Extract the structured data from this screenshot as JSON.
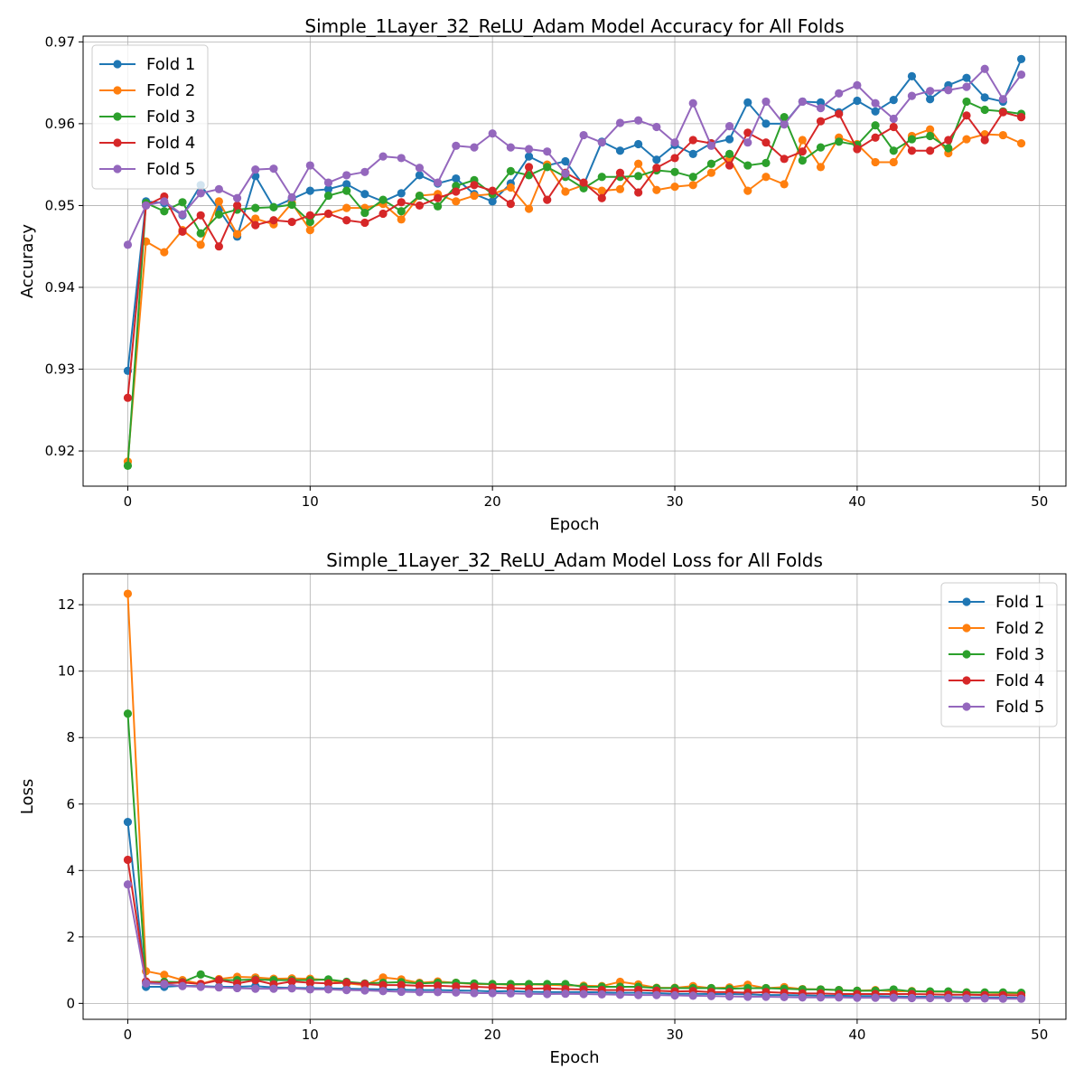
{
  "chart_data": [
    {
      "type": "line",
      "title": "Simple_1Layer_32_ReLU_Adam Model Accuracy for All Folds",
      "xlabel": "Epoch",
      "ylabel": "Accuracy",
      "xlim": [
        -2.45,
        51.45
      ],
      "ylim": [
        0.9157,
        0.9707
      ],
      "xticks": [
        0,
        10,
        20,
        30,
        40,
        50
      ],
      "yticks": [
        0.92,
        0.93,
        0.94,
        0.95,
        0.96,
        0.97
      ],
      "xtick_labels": [
        "0",
        "10",
        "20",
        "30",
        "40",
        "50"
      ],
      "ytick_labels": [
        "0.92",
        "0.93",
        "0.94",
        "0.95",
        "0.96",
        "0.97"
      ],
      "grid": true,
      "legend_position": "upper left",
      "x": [
        0,
        1,
        2,
        3,
        4,
        5,
        6,
        7,
        8,
        9,
        10,
        11,
        12,
        13,
        14,
        15,
        16,
        17,
        18,
        19,
        20,
        21,
        22,
        23,
        24,
        25,
        26,
        27,
        28,
        29,
        30,
        31,
        32,
        33,
        34,
        35,
        36,
        37,
        38,
        39,
        40,
        41,
        42,
        43,
        44,
        45,
        46,
        47,
        48,
        49
      ],
      "series": [
        {
          "name": "Fold 1",
          "color": "#1f77b4",
          "values": [
            0.9298,
            0.9505,
            0.9503,
            0.9488,
            0.9525,
            0.9495,
            0.9462,
            0.9536,
            0.9498,
            0.9508,
            0.9518,
            0.952,
            0.9526,
            0.9514,
            0.9505,
            0.9515,
            0.9537,
            0.9527,
            0.9533,
            0.9514,
            0.9505,
            0.9527,
            0.956,
            0.9549,
            0.9554,
            0.9525,
            0.9578,
            0.9567,
            0.9575,
            0.9556,
            0.9574,
            0.9563,
            0.9576,
            0.9581,
            0.9626,
            0.96,
            0.96,
            0.9627,
            0.9626,
            0.9614,
            0.9628,
            0.9615,
            0.9629,
            0.9658,
            0.963,
            0.9647,
            0.9656,
            0.9632,
            0.9627,
            0.9679
          ]
        },
        {
          "name": "Fold 2",
          "color": "#ff7f0e",
          "values": [
            0.9187,
            0.9456,
            0.9443,
            0.947,
            0.9452,
            0.9505,
            0.9465,
            0.9484,
            0.9477,
            0.9503,
            0.947,
            0.949,
            0.9497,
            0.9497,
            0.9502,
            0.9483,
            0.9512,
            0.9514,
            0.9505,
            0.9512,
            0.9514,
            0.9522,
            0.9496,
            0.955,
            0.9517,
            0.9525,
            0.9518,
            0.952,
            0.9551,
            0.9519,
            0.9523,
            0.9525,
            0.954,
            0.9557,
            0.9518,
            0.9535,
            0.9526,
            0.958,
            0.9547,
            0.9583,
            0.9575,
            0.9553,
            0.9553,
            0.9585,
            0.9593,
            0.9564,
            0.9581,
            0.9587,
            0.9586,
            0.9576
          ]
        },
        {
          "name": "Fold 3",
          "color": "#2ca02c",
          "values": [
            0.9182,
            0.9503,
            0.9493,
            0.9504,
            0.9466,
            0.9489,
            0.9495,
            0.9497,
            0.9498,
            0.9501,
            0.948,
            0.9512,
            0.9518,
            0.9491,
            0.9507,
            0.9493,
            0.9512,
            0.9499,
            0.9524,
            0.9531,
            0.9514,
            0.9542,
            0.9537,
            0.9547,
            0.9535,
            0.9521,
            0.9535,
            0.9535,
            0.9536,
            0.9543,
            0.9541,
            0.9535,
            0.9551,
            0.9563,
            0.9549,
            0.9552,
            0.9608,
            0.9555,
            0.9571,
            0.9578,
            0.9574,
            0.9598,
            0.9567,
            0.9581,
            0.9585,
            0.957,
            0.9627,
            0.9617,
            0.9615,
            0.9612
          ]
        },
        {
          "name": "Fold 4",
          "color": "#d62728",
          "values": [
            0.9265,
            0.95,
            0.9511,
            0.9468,
            0.9488,
            0.945,
            0.95,
            0.9476,
            0.9482,
            0.948,
            0.9488,
            0.949,
            0.9482,
            0.9479,
            0.949,
            0.9504,
            0.95,
            0.9509,
            0.9517,
            0.9525,
            0.9518,
            0.9502,
            0.9547,
            0.9507,
            0.954,
            0.9528,
            0.9509,
            0.954,
            0.9516,
            0.9546,
            0.9558,
            0.958,
            0.9576,
            0.9549,
            0.9589,
            0.9577,
            0.9557,
            0.9566,
            0.9603,
            0.9612,
            0.9569,
            0.9583,
            0.9596,
            0.9567,
            0.9567,
            0.958,
            0.961,
            0.958,
            0.9614,
            0.9608
          ]
        },
        {
          "name": "Fold 5",
          "color": "#9467bd",
          "values": [
            0.9452,
            0.95,
            0.9505,
            0.9489,
            0.9515,
            0.952,
            0.9509,
            0.9544,
            0.9545,
            0.951,
            0.9549,
            0.9528,
            0.9537,
            0.9541,
            0.956,
            0.9558,
            0.9546,
            0.9528,
            0.9573,
            0.9571,
            0.9588,
            0.9571,
            0.9569,
            0.9566,
            0.9539,
            0.9586,
            0.9577,
            0.9601,
            0.9604,
            0.9596,
            0.9577,
            0.9625,
            0.9573,
            0.9597,
            0.9577,
            0.9627,
            0.9599,
            0.9627,
            0.9619,
            0.9637,
            0.9647,
            0.9625,
            0.9606,
            0.9634,
            0.964,
            0.9641,
            0.9645,
            0.9667,
            0.963,
            0.966
          ]
        }
      ]
    },
    {
      "type": "line",
      "title": "Simple_1Layer_32_ReLU_Adam Model Loss for All Folds",
      "xlabel": "Epoch",
      "ylabel": "Loss",
      "xlim": [
        -2.45,
        51.45
      ],
      "ylim": [
        -0.48,
        12.93
      ],
      "xticks": [
        0,
        10,
        20,
        30,
        40,
        50
      ],
      "yticks": [
        0,
        2,
        4,
        6,
        8,
        10,
        12
      ],
      "xtick_labels": [
        "0",
        "10",
        "20",
        "30",
        "40",
        "50"
      ],
      "ytick_labels": [
        "0",
        "2",
        "4",
        "6",
        "8",
        "10",
        "12"
      ],
      "grid": true,
      "legend_position": "upper right",
      "x": [
        0,
        1,
        2,
        3,
        4,
        5,
        6,
        7,
        8,
        9,
        10,
        11,
        12,
        13,
        14,
        15,
        16,
        17,
        18,
        19,
        20,
        21,
        22,
        23,
        24,
        25,
        26,
        27,
        28,
        29,
        30,
        31,
        32,
        33,
        34,
        35,
        36,
        37,
        38,
        39,
        40,
        41,
        42,
        43,
        44,
        45,
        46,
        47,
        48,
        49
      ],
      "series": [
        {
          "name": "Fold 1",
          "color": "#1f77b4",
          "values": [
            5.46,
            0.5,
            0.5,
            0.53,
            0.52,
            0.5,
            0.5,
            0.52,
            0.48,
            0.47,
            0.46,
            0.45,
            0.44,
            0.43,
            0.42,
            0.41,
            0.4,
            0.4,
            0.39,
            0.38,
            0.36,
            0.37,
            0.35,
            0.34,
            0.34,
            0.34,
            0.33,
            0.32,
            0.32,
            0.31,
            0.29,
            0.29,
            0.28,
            0.28,
            0.27,
            0.25,
            0.25,
            0.24,
            0.23,
            0.23,
            0.22,
            0.22,
            0.21,
            0.2,
            0.2,
            0.19,
            0.18,
            0.18,
            0.18,
            0.17
          ]
        },
        {
          "name": "Fold 2",
          "color": "#ff7f0e",
          "values": [
            12.33,
            0.97,
            0.86,
            0.7,
            0.59,
            0.73,
            0.8,
            0.78,
            0.74,
            0.75,
            0.74,
            0.7,
            0.6,
            0.55,
            0.78,
            0.72,
            0.62,
            0.66,
            0.62,
            0.58,
            0.58,
            0.56,
            0.57,
            0.56,
            0.54,
            0.53,
            0.52,
            0.65,
            0.57,
            0.47,
            0.47,
            0.52,
            0.46,
            0.48,
            0.56,
            0.46,
            0.49,
            0.43,
            0.42,
            0.4,
            0.38,
            0.4,
            0.36,
            0.37,
            0.35,
            0.35,
            0.33,
            0.32,
            0.31,
            0.3
          ]
        },
        {
          "name": "Fold 3",
          "color": "#2ca02c",
          "values": [
            8.72,
            0.65,
            0.65,
            0.64,
            0.87,
            0.7,
            0.7,
            0.72,
            0.7,
            0.7,
            0.7,
            0.72,
            0.65,
            0.6,
            0.62,
            0.64,
            0.6,
            0.62,
            0.62,
            0.6,
            0.58,
            0.58,
            0.58,
            0.58,
            0.58,
            0.5,
            0.5,
            0.5,
            0.5,
            0.46,
            0.46,
            0.46,
            0.46,
            0.44,
            0.46,
            0.46,
            0.44,
            0.42,
            0.42,
            0.4,
            0.38,
            0.38,
            0.42,
            0.36,
            0.36,
            0.36,
            0.33,
            0.33,
            0.33,
            0.32
          ]
        },
        {
          "name": "Fold 4",
          "color": "#d62728",
          "values": [
            4.32,
            0.66,
            0.6,
            0.63,
            0.58,
            0.7,
            0.6,
            0.7,
            0.57,
            0.66,
            0.62,
            0.6,
            0.62,
            0.58,
            0.55,
            0.55,
            0.53,
            0.53,
            0.51,
            0.5,
            0.48,
            0.46,
            0.44,
            0.45,
            0.43,
            0.42,
            0.4,
            0.4,
            0.4,
            0.38,
            0.36,
            0.37,
            0.34,
            0.34,
            0.32,
            0.34,
            0.32,
            0.3,
            0.3,
            0.28,
            0.28,
            0.28,
            0.28,
            0.28,
            0.27,
            0.26,
            0.26,
            0.25,
            0.25,
            0.24
          ]
        },
        {
          "name": "Fold 5",
          "color": "#9467bd",
          "values": [
            3.58,
            0.6,
            0.58,
            0.52,
            0.5,
            0.48,
            0.46,
            0.44,
            0.44,
            0.45,
            0.42,
            0.42,
            0.4,
            0.39,
            0.37,
            0.35,
            0.34,
            0.34,
            0.33,
            0.31,
            0.31,
            0.3,
            0.29,
            0.28,
            0.29,
            0.28,
            0.27,
            0.26,
            0.25,
            0.25,
            0.24,
            0.23,
            0.22,
            0.21,
            0.2,
            0.2,
            0.19,
            0.18,
            0.18,
            0.18,
            0.17,
            0.17,
            0.17,
            0.16,
            0.16,
            0.16,
            0.15,
            0.15,
            0.14,
            0.14
          ]
        }
      ]
    }
  ]
}
